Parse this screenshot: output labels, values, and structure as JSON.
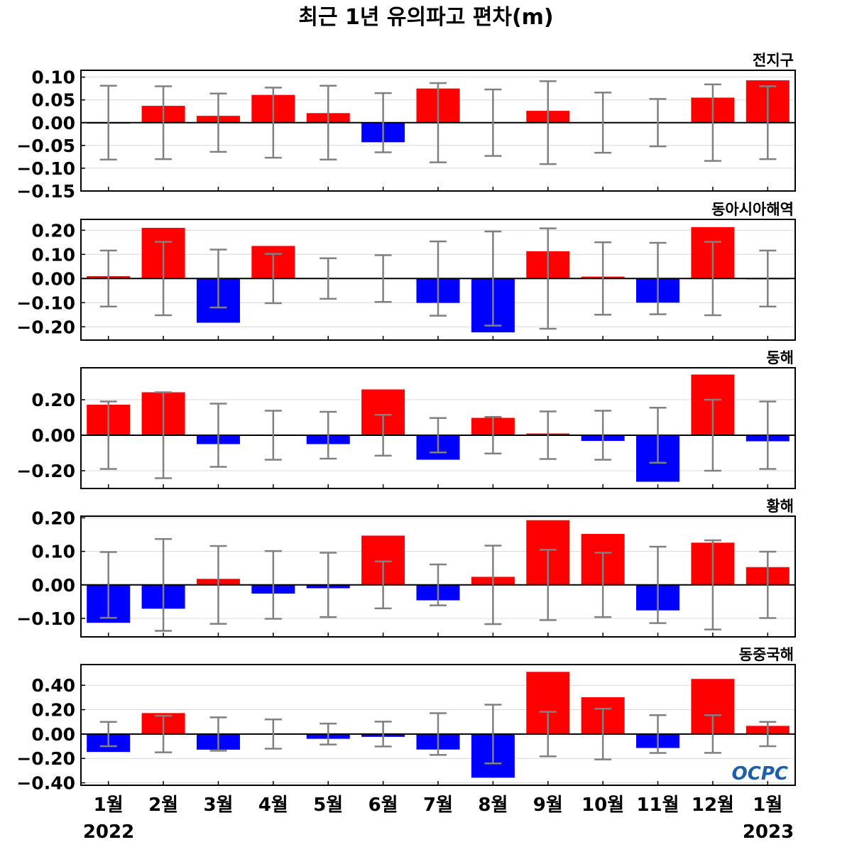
{
  "title": "최근 1년 유의파고 편차(m)",
  "logo": "OCPC",
  "colors": {
    "positive": "#ff0000",
    "negative": "#0000ff",
    "errorbar": "#808080",
    "grid": "#d8d8d8",
    "zero": "#000000"
  },
  "chart_data": [
    {
      "type": "bar",
      "region": "전지구",
      "categories": [
        "1월",
        "2월",
        "3월",
        "4월",
        "5월",
        "6월",
        "7월",
        "8월",
        "9월",
        "10월",
        "11월",
        "12월",
        "1월"
      ],
      "values": [
        -0.002,
        0.037,
        0.015,
        0.061,
        0.021,
        -0.043,
        0.075,
        0.001,
        0.026,
        0.001,
        0.001,
        0.055,
        0.093
      ],
      "errorbars": [
        0.081,
        0.08,
        0.064,
        0.077,
        0.081,
        0.065,
        0.087,
        0.073,
        0.091,
        0.066,
        0.052,
        0.084,
        0.08
      ],
      "ylim": [
        -0.15,
        0.115
      ],
      "ticks": [
        0.1,
        0.05,
        0.0,
        -0.05,
        -0.1,
        -0.15
      ],
      "tick_labels": [
        "0.10",
        "0.05",
        "0.00",
        "−0.05",
        "−0.10",
        "−0.15"
      ]
    },
    {
      "type": "bar",
      "region": "동아시아해역",
      "categories": [
        "1월",
        "2월",
        "3월",
        "4월",
        "5월",
        "6월",
        "7월",
        "8월",
        "9월",
        "10월",
        "11월",
        "12월",
        "1월"
      ],
      "values": [
        0.01,
        0.21,
        -0.183,
        0.135,
        0.002,
        0.001,
        -0.101,
        -0.223,
        0.113,
        0.008,
        -0.1,
        0.213,
        -0.003
      ],
      "errorbars": [
        0.116,
        0.152,
        0.12,
        0.102,
        0.084,
        0.097,
        0.154,
        0.195,
        0.208,
        0.15,
        0.148,
        0.152,
        0.116
      ],
      "ylim": [
        -0.255,
        0.245
      ],
      "ticks": [
        0.2,
        0.1,
        0.0,
        -0.1,
        -0.2
      ],
      "tick_labels": [
        "0.20",
        "0.10",
        "0.00",
        "−0.10",
        "−0.20"
      ]
    },
    {
      "type": "bar",
      "region": "동해",
      "categories": [
        "1월",
        "2월",
        "3월",
        "4월",
        "5월",
        "6월",
        "7월",
        "8월",
        "9월",
        "10월",
        "11월",
        "12월",
        "1월"
      ],
      "values": [
        0.172,
        0.242,
        -0.05,
        0.002,
        -0.05,
        0.258,
        -0.138,
        0.098,
        0.01,
        -0.032,
        -0.262,
        0.342,
        -0.034
      ],
      "errorbars": [
        0.19,
        0.242,
        0.178,
        0.138,
        0.132,
        0.115,
        0.097,
        0.103,
        0.134,
        0.138,
        0.155,
        0.2,
        0.19
      ],
      "ylim": [
        -0.3,
        0.38
      ],
      "ticks": [
        0.2,
        0.0,
        -0.2
      ],
      "tick_labels": [
        "0.20",
        "0.00",
        "−0.20"
      ]
    },
    {
      "type": "bar",
      "region": "황해",
      "categories": [
        "1월",
        "2월",
        "3월",
        "4월",
        "5월",
        "6월",
        "7월",
        "8월",
        "9월",
        "10월",
        "11월",
        "12월",
        "1월"
      ],
      "values": [
        -0.113,
        -0.071,
        0.018,
        -0.026,
        -0.01,
        0.147,
        -0.046,
        0.024,
        0.193,
        0.152,
        -0.076,
        0.126,
        0.053
      ],
      "errorbars": [
        0.098,
        0.137,
        0.116,
        0.101,
        0.096,
        0.07,
        0.061,
        0.117,
        0.105,
        0.096,
        0.114,
        0.133,
        0.099
      ],
      "ylim": [
        -0.155,
        0.205
      ],
      "ticks": [
        0.2,
        0.1,
        0.0,
        -0.1
      ],
      "tick_labels": [
        "0.20",
        "0.10",
        "0.00",
        "−0.10"
      ]
    },
    {
      "type": "bar",
      "region": "동중국해",
      "categories": [
        "1월",
        "2월",
        "3월",
        "4월",
        "5월",
        "6월",
        "7월",
        "8월",
        "9월",
        "10월",
        "11월",
        "12월",
        "1월"
      ],
      "values": [
        -0.147,
        0.172,
        -0.128,
        0.002,
        -0.039,
        -0.023,
        -0.127,
        -0.358,
        0.51,
        0.302,
        -0.114,
        0.452,
        0.067
      ],
      "errorbars": [
        0.1,
        0.15,
        0.137,
        0.12,
        0.086,
        0.102,
        0.171,
        0.241,
        0.183,
        0.208,
        0.155,
        0.154,
        0.1
      ],
      "ylim": [
        -0.42,
        0.57
      ],
      "ticks": [
        0.4,
        0.2,
        0.0,
        -0.2,
        -0.4
      ],
      "tick_labels": [
        "0.40",
        "0.20",
        "0.00",
        "−0.20",
        "−0.40"
      ]
    }
  ],
  "x_axis": {
    "labels": [
      "1월",
      "2월",
      "3월",
      "4월",
      "5월",
      "6월",
      "7월",
      "8월",
      "9월",
      "10월",
      "11월",
      "12월",
      "1월"
    ],
    "year_start": "2022",
    "year_end": "2023"
  }
}
